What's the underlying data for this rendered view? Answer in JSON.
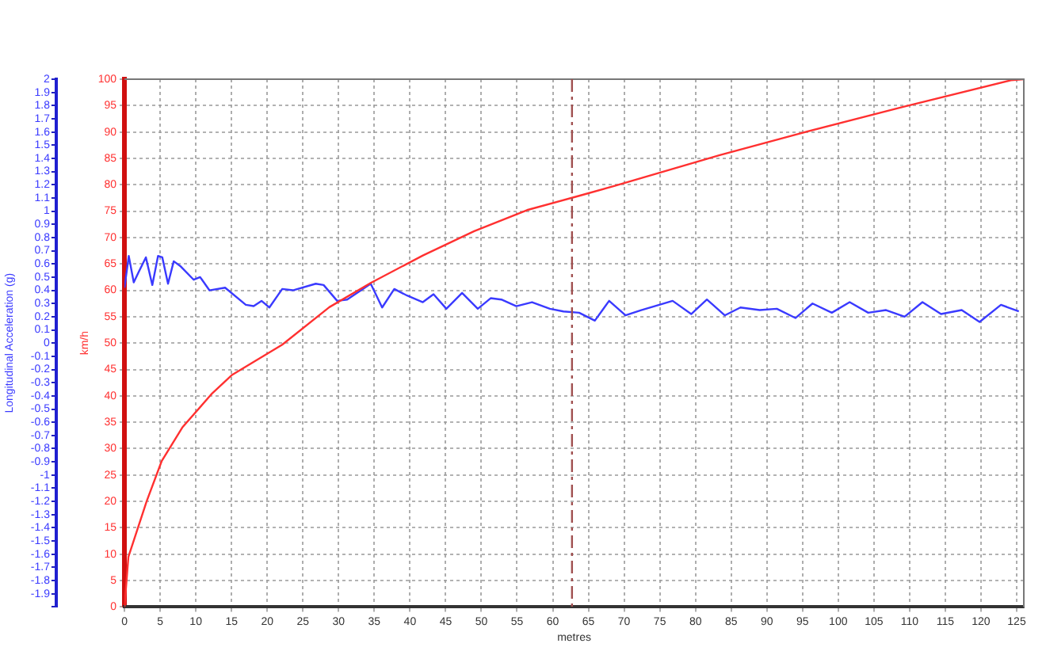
{
  "chart_data": {
    "type": "line",
    "xlabel": "metres",
    "ylabel": "km/h",
    "y2label": "Longitudinal Acceleration (g)",
    "marker": "none",
    "line_style": "solid",
    "grid": true,
    "legend": false,
    "xlim": [
      0,
      126
    ],
    "xticks": [
      0,
      5,
      10,
      15,
      20,
      25,
      30,
      35,
      40,
      45,
      50,
      55,
      60,
      65,
      70,
      75,
      80,
      85,
      90,
      95,
      100,
      105,
      110,
      115,
      120,
      125
    ],
    "ylim": [
      0,
      100
    ],
    "yticks": [
      0,
      5,
      10,
      15,
      20,
      25,
      30,
      35,
      40,
      45,
      50,
      55,
      60,
      65,
      70,
      75,
      80,
      85,
      90,
      95,
      100
    ],
    "y2lim": [
      -2,
      2
    ],
    "y2ticks": [
      {
        "value": -2,
        "label": null
      },
      -1.9,
      -1.8,
      -1.7,
      -1.6,
      -1.5,
      -1.4,
      -1.3,
      -1.2,
      -1.1,
      -1,
      -0.9,
      -0.8,
      -0.7,
      -0.6,
      -0.5,
      -0.4,
      -0.3,
      -0.2,
      -0.1,
      0,
      0.1,
      0.2,
      0.3,
      0.4,
      0.5,
      0.6,
      0.7,
      0.8,
      0.9,
      1,
      1.1,
      1.2,
      1.3,
      1.4,
      1.5,
      1.6,
      1.7,
      1.8,
      1.9,
      2
    ],
    "ref_lines": [
      {
        "axis": "x",
        "value": 62.7,
        "color": "#a05050",
        "line_style": "dashed"
      }
    ],
    "series": [
      {
        "color": "#ff3030",
        "x": [
          0,
          0.55,
          3.1,
          5.2,
          8.1,
          12.3,
          15.1,
          22.1,
          28.7,
          34.5,
          41.8,
          49,
          56.4,
          63.7,
          68.7,
          83.4,
          94.3,
          108.9,
          124.2,
          126
        ],
        "values": [
          0,
          9.5,
          20,
          27.6,
          34,
          40.5,
          44,
          49.7,
          56.8,
          61.4,
          66.6,
          71.2,
          75.2,
          77.9,
          79.8,
          85.6,
          89.6,
          94.7,
          99.8,
          100
        ]
      },
      {
        "color": "#3a3aff",
        "axis": "y2",
        "x": [
          0,
          0.6,
          1.3,
          2,
          3,
          3.9,
          4.7,
          5.3,
          6.1,
          6.9,
          7.9,
          9.7,
          10.6,
          11.9,
          14.1,
          17,
          18.1,
          19.2,
          20.3,
          22.1,
          23.6,
          26.8,
          27.9,
          29.8,
          31.2,
          34.5,
          36.1,
          37.8,
          39.6,
          41.8,
          43.3,
          45.1,
          47.3,
          49.5,
          51.3,
          52.8,
          54.9,
          57.1,
          59.6,
          61.5,
          63.7,
          65.9,
          67.9,
          70.2,
          72.4,
          76.8,
          79.4,
          81.6,
          84.1,
          86.3,
          89,
          91.4,
          94,
          96.4,
          99.1,
          101.6,
          104.2,
          106.7,
          109.3,
          111.8,
          114.4,
          117.3,
          119.8,
          122.8,
          125.3
        ],
        "values": [
          0.42,
          0.66,
          0.46,
          0.54,
          0.65,
          0.44,
          0.66,
          0.65,
          0.45,
          0.62,
          0.58,
          0.48,
          0.5,
          0.4,
          0.42,
          0.29,
          0.28,
          0.32,
          0.27,
          0.41,
          0.4,
          0.45,
          0.44,
          0.32,
          0.33,
          0.45,
          0.27,
          0.41,
          0.36,
          0.31,
          0.37,
          0.26,
          0.38,
          0.26,
          0.34,
          0.33,
          0.28,
          0.31,
          0.26,
          0.24,
          0.23,
          0.17,
          0.32,
          0.21,
          0.25,
          0.32,
          0.22,
          0.33,
          0.21,
          0.27,
          0.25,
          0.26,
          0.19,
          0.3,
          0.23,
          0.31,
          0.23,
          0.25,
          0.2,
          0.31,
          0.22,
          0.25,
          0.16,
          0.29,
          0.24
        ]
      }
    ]
  }
}
